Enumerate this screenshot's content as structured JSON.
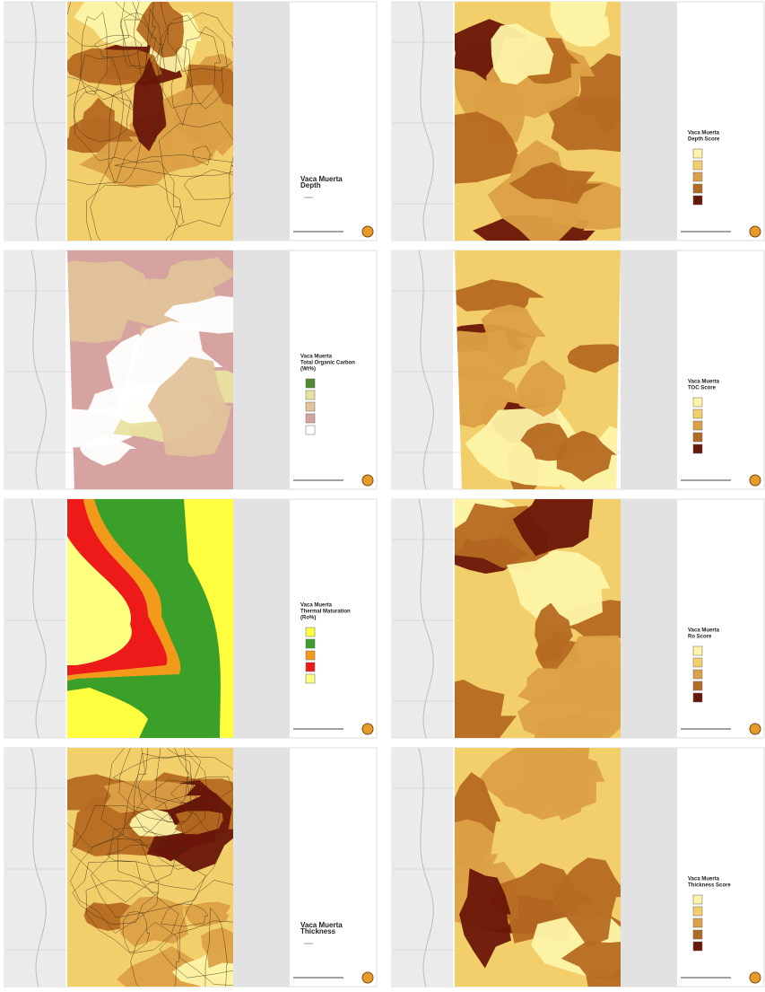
{
  "panels": [
    {
      "title": [
        "Vaca Muerta",
        "Depth"
      ]
    },
    {
      "title": [
        "Vaca Muerta",
        "Depth Score"
      ]
    },
    {
      "title": [
        "Vaca Muerta",
        "Total Organic Carbon",
        "(Wt%)"
      ]
    },
    {
      "title": [
        "Vaca Muerta",
        "TOC Score"
      ]
    },
    {
      "title": [
        "Vaca Muerta",
        "Thermal Maturation",
        "(Ro%)"
      ]
    },
    {
      "title": [
        "Vaca Muerta",
        "Ro Score"
      ]
    },
    {
      "title": [
        "Vaca Muerta",
        "Thickness"
      ]
    },
    {
      "title": [
        "Vaca Muerta",
        "Thickness Score"
      ]
    }
  ]
}
